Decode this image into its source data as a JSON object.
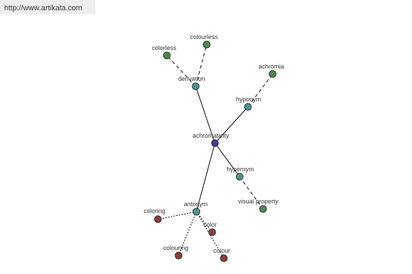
{
  "header": {
    "url": "http://www.artikata.com"
  },
  "nodes": [
    {
      "label": "achromaticity"
    },
    {
      "label": "derivation"
    },
    {
      "label": "colorless"
    },
    {
      "label": "colourless"
    },
    {
      "label": "hyponym"
    },
    {
      "label": "achromia"
    },
    {
      "label": "hypernym"
    },
    {
      "label": "visual property"
    },
    {
      "label": "antonym"
    },
    {
      "label": "coloring"
    },
    {
      "label": "color"
    },
    {
      "label": "colouring"
    },
    {
      "label": "colour"
    }
  ]
}
